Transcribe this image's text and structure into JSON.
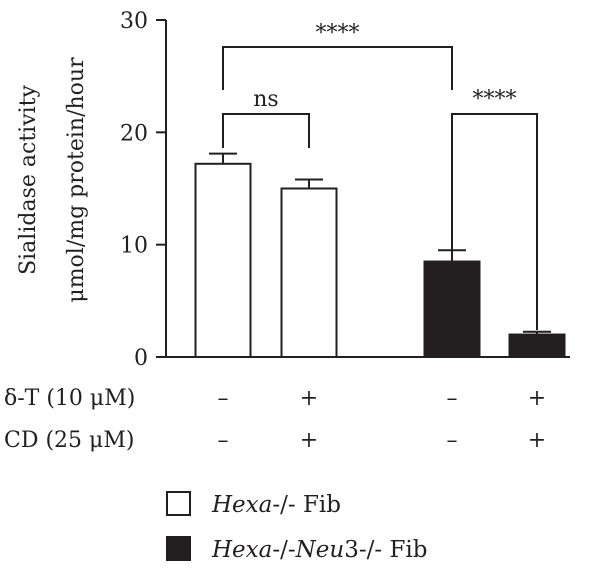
{
  "chart_data": {
    "type": "bar",
    "ylabel_line1": "Sialidase activity",
    "ylabel_line2": "μmol/mg protein/hour",
    "ylim": [
      0,
      30
    ],
    "yticks": [
      0,
      10,
      20,
      30
    ],
    "bars": [
      {
        "group": "Hexa-/- Fib",
        "value": 17.2,
        "error": 0.9,
        "fill": "#ffffff"
      },
      {
        "group": "Hexa-/- Fib",
        "value": 15.0,
        "error": 0.8,
        "fill": "#ffffff"
      },
      {
        "group": "Hexa-/-Neu3-/- Fib",
        "value": 8.5,
        "error": 1.0,
        "fill": "#231f20"
      },
      {
        "group": "Hexa-/-Neu3-/- Fib",
        "value": 2.0,
        "error": 0.25,
        "fill": "#231f20"
      }
    ],
    "conditions": [
      {
        "label": "δ-T (10 μM)",
        "values": [
          "–",
          "+",
          "–",
          "+"
        ]
      },
      {
        "label": "CD (25 μM)",
        "values": [
          "–",
          "+",
          "–",
          "+"
        ]
      }
    ],
    "significance": [
      {
        "from": 0,
        "to": 1,
        "label": "ns"
      },
      {
        "from": 0,
        "to": 2,
        "label": "****"
      },
      {
        "from": 2,
        "to": 3,
        "label": "****"
      }
    ],
    "legend": [
      {
        "label_italic": "Hexa",
        "label_rest": "-/- Fib",
        "fill": "#ffffff"
      },
      {
        "label_italic_1": "Hexa",
        "label_mid": "-/-",
        "label_italic_2": "Neu",
        "label_rest": "3-/- Fib",
        "fill": "#231f20"
      }
    ],
    "colors": {
      "ink": "#231f20",
      "background": "#ffffff"
    }
  }
}
